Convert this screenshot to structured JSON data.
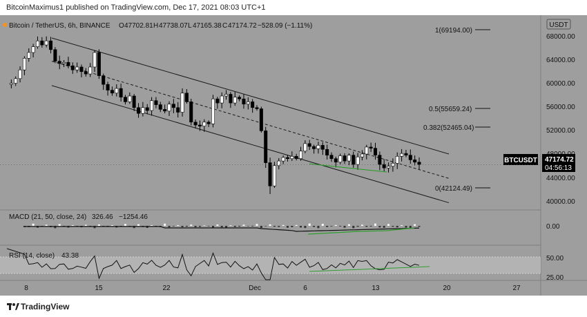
{
  "header": {
    "published_line": "BitcoinMaximus1 published on TradingView.com, Dec 17, 2021 08:03 UTC+1"
  },
  "legend": {
    "symbol": "Bitcoin / TetherUS, 6h, BINANCE",
    "o_label": "O",
    "o": "47702.81",
    "h_label": "H",
    "h": "47738.07",
    "l_label": "L",
    "l": "47165.38",
    "c_label": "C",
    "c": "47174.72",
    "change": "−528.09 (−1.11%)"
  },
  "price_axis": {
    "currency": "USDT",
    "ticks": [
      "68000.00",
      "64000.00",
      "60000.00",
      "56000.00",
      "52000.00",
      "48000.00",
      "44000.00",
      "40000.00"
    ],
    "last_symbol": "BTCUSDT",
    "last_price": "47174.72",
    "countdown": "04:56:13"
  },
  "fib_labels": [
    "1(69194.00)",
    "0.5(55659.24)",
    "0.382(52465.04)",
    "0(42124.49)"
  ],
  "macd": {
    "label": "MACD (21, 50, close, 24)",
    "v1": "326.46",
    "v2": "−1254.46",
    "tick": "0.00"
  },
  "rsi": {
    "label": "RSI (14, close)",
    "value": "43.38",
    "ticks": [
      "50.00",
      "25.00"
    ]
  },
  "time_axis": {
    "labels": [
      "8",
      "15",
      "22",
      "Dec",
      "6",
      "13",
      "20",
      "27"
    ]
  },
  "footer": {
    "brand": "TradingView"
  },
  "colors": {
    "background": "#9e9e9e",
    "up": "#ffffff",
    "down": "#000000",
    "green": "#2e9e2e",
    "line": "#1a1a1a"
  },
  "chart_data": {
    "type": "line",
    "title": "Bitcoin / TetherUS, 6h, BINANCE",
    "ylim": [
      39000,
      71500
    ],
    "x_labels": [
      "8",
      "15",
      "22",
      "Dec",
      "6",
      "13",
      "20",
      "27"
    ],
    "price_path": [
      61000,
      61200,
      62000,
      63500,
      65500,
      66500,
      67500,
      68500,
      67800,
      68500,
      67000,
      65000,
      64600,
      64800,
      64200,
      63500,
      64000,
      63200,
      62800,
      64000,
      66500,
      62500,
      61000,
      60000,
      59500,
      60300,
      58800,
      58000,
      59000,
      57000,
      56000,
      57000,
      56500,
      58200,
      57500,
      56700,
      56400,
      57600,
      57000,
      56200,
      59500,
      58000,
      54500,
      54000,
      53800,
      54500,
      54200,
      58500,
      57800,
      59000,
      59300,
      57800,
      58800,
      58500,
      57600,
      58000,
      57000,
      56800,
      53000,
      47500,
      43500,
      47000,
      47800,
      48400,
      48200,
      48600,
      48200,
      49500,
      50800,
      50300,
      49900,
      50500,
      49800,
      48800,
      48200,
      47600,
      48700,
      47800,
      48800,
      47200,
      48500,
      49000,
      50200,
      50000,
      48800,
      47200,
      46600,
      46900,
      47400,
      48600,
      49100,
      48800,
      48000,
      47600,
      47200
    ],
    "channel": {
      "upper_start": [
        0.0,
        69000
      ],
      "upper_end": [
        1.0,
        49000
      ],
      "mid_start": [
        0.0,
        65000
      ],
      "mid_end": [
        1.0,
        44800
      ],
      "lower_start": [
        0.0,
        60800
      ],
      "lower_end": [
        1.0,
        40600
      ]
    },
    "fib_levels": [
      69194.0,
      55659.24,
      52465.04,
      42124.49
    ]
  }
}
